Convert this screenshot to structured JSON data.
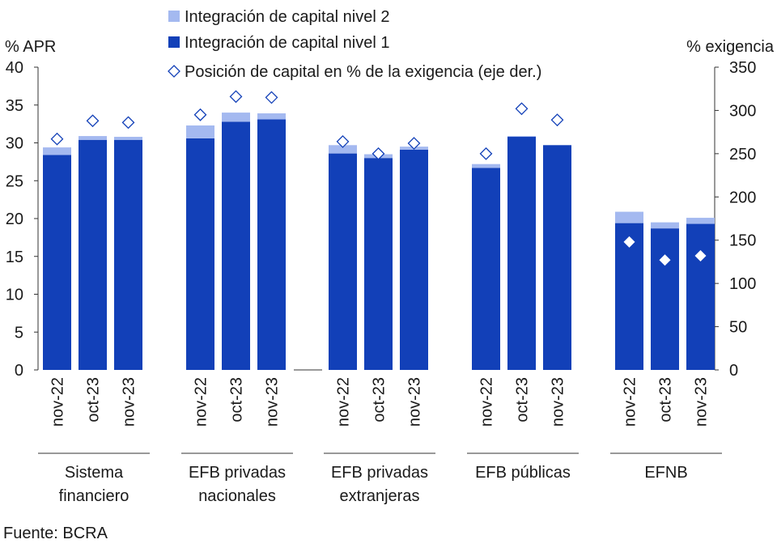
{
  "chart_data": {
    "type": "bar",
    "stacked": true,
    "left_axis_label": "% APR",
    "right_axis_label": "% exigencia",
    "ylim_left": [
      0,
      40
    ],
    "yticks_left": [
      0,
      5,
      10,
      15,
      20,
      25,
      30,
      35,
      40
    ],
    "ylim_right": [
      0,
      350
    ],
    "yticks_right": [
      0,
      50,
      100,
      150,
      200,
      250,
      300,
      350
    ],
    "grid": false,
    "legend_position": "top",
    "legend": [
      {
        "label": "Integración de capital nivel 2",
        "marker": "square",
        "color": "#a4b9f0"
      },
      {
        "label": "Integración de capital nivel 1",
        "marker": "square",
        "color": "#1240b8"
      },
      {
        "label": "Posición de capital en % de la exigencia (eje der.)",
        "marker": "diamond-outline",
        "color": "#1240b8"
      }
    ],
    "groups": [
      {
        "lines": [
          "Sistema",
          "financiero"
        ],
        "categories": [
          "nov-22",
          "oct-23",
          "nov-23"
        ],
        "nivel1": [
          28.4,
          30.4,
          30.4
        ],
        "nivel2": [
          1.0,
          0.5,
          0.4
        ],
        "posicion": [
          267,
          288,
          286
        ]
      },
      {
        "lines": [
          "EFB privadas",
          "nacionales"
        ],
        "categories": [
          "nov-22",
          "oct-23",
          "nov-23"
        ],
        "nivel1": [
          30.6,
          32.8,
          33.1
        ],
        "nivel2": [
          1.7,
          1.2,
          0.8
        ],
        "posicion": [
          295,
          316,
          315
        ]
      },
      {
        "lines": [
          "EFB privadas",
          "extranjeras"
        ],
        "categories": [
          "nov-22",
          "oct-23",
          "nov-23"
        ],
        "nivel1": [
          28.6,
          28.0,
          29.1
        ],
        "nivel2": [
          1.1,
          0.5,
          0.4
        ],
        "posicion": [
          264,
          250,
          262
        ]
      },
      {
        "lines": [
          "EFB públicas"
        ],
        "categories": [
          "nov-22",
          "oct-23",
          "nov-23"
        ],
        "nivel1": [
          26.7,
          30.8,
          29.7
        ],
        "nivel2": [
          0.5,
          0.1,
          0.0
        ],
        "posicion": [
          250,
          302,
          289
        ]
      },
      {
        "lines": [
          "EFNB"
        ],
        "categories": [
          "nov-22",
          "oct-23",
          "nov-23"
        ],
        "nivel1": [
          19.4,
          18.7,
          19.3
        ],
        "nivel2": [
          1.5,
          0.8,
          0.8
        ],
        "posicion": [
          148,
          127,
          132
        ]
      }
    ],
    "colors": {
      "nivel1": "#1240b8",
      "nivel2": "#a4b9f0",
      "marker_open": "#1240b8",
      "marker_filled": "#ffffff",
      "axis": "#333333"
    }
  },
  "source": "Fuente: BCRA"
}
